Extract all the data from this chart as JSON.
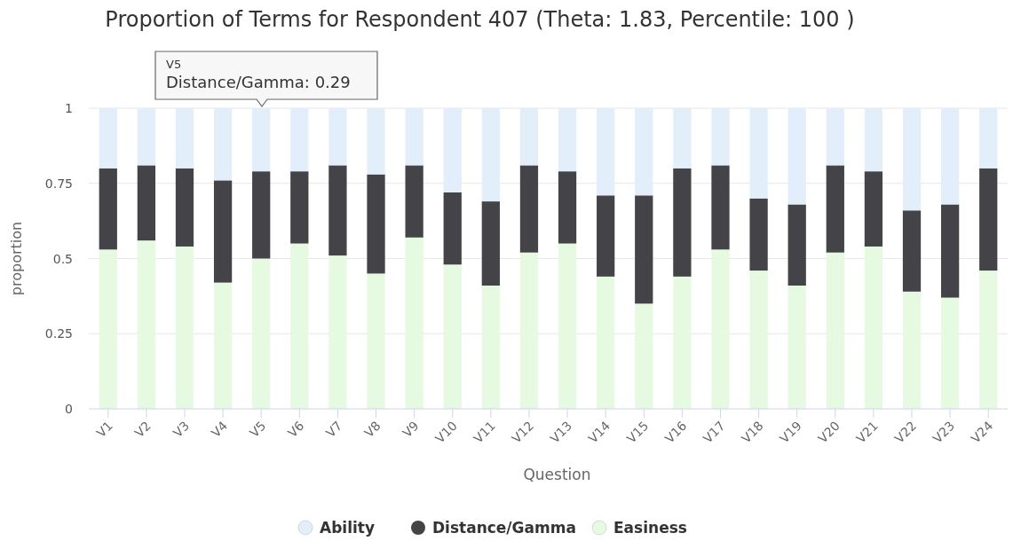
{
  "chart_data": {
    "type": "bar",
    "stacked": true,
    "title": "Proportion of Terms for Respondent 407 (Theta: 1.83, Percentile: 100 )",
    "xlabel": "Question",
    "ylabel": "proportion",
    "categories": [
      "V1",
      "V2",
      "V3",
      "V4",
      "V5",
      "V6",
      "V7",
      "V8",
      "V9",
      "V10",
      "V11",
      "V12",
      "V13",
      "V14",
      "V15",
      "V16",
      "V17",
      "V18",
      "V19",
      "V20",
      "V21",
      "V22",
      "V23",
      "V24"
    ],
    "series": [
      {
        "name": "Easiness",
        "color": "#e6f9e1",
        "values": [
          0.53,
          0.56,
          0.54,
          0.42,
          0.5,
          0.55,
          0.51,
          0.45,
          0.57,
          0.48,
          0.41,
          0.52,
          0.55,
          0.44,
          0.35,
          0.44,
          0.53,
          0.46,
          0.41,
          0.52,
          0.54,
          0.39,
          0.37,
          0.46
        ]
      },
      {
        "name": "Distance/Gamma",
        "color": "#434348",
        "values": [
          0.27,
          0.25,
          0.26,
          0.34,
          0.29,
          0.24,
          0.3,
          0.33,
          0.24,
          0.24,
          0.28,
          0.29,
          0.24,
          0.27,
          0.36,
          0.36,
          0.28,
          0.24,
          0.27,
          0.29,
          0.25,
          0.27,
          0.31,
          0.34
        ]
      },
      {
        "name": "Ability",
        "color": "#e3eefb",
        "values": [
          0.2,
          0.19,
          0.2,
          0.24,
          0.21,
          0.21,
          0.19,
          0.22,
          0.19,
          0.28,
          0.31,
          0.19,
          0.21,
          0.29,
          0.29,
          0.2,
          0.19,
          0.3,
          0.32,
          0.19,
          0.21,
          0.34,
          0.32,
          0.2
        ]
      }
    ],
    "ylim": [
      0,
      1
    ],
    "yticks": [
      0,
      0.25,
      0.5,
      0.75,
      1
    ],
    "grid": "y",
    "legend": "bottom",
    "annotations": [
      "V5\nDistance/Gamma: 0.29"
    ]
  }
}
